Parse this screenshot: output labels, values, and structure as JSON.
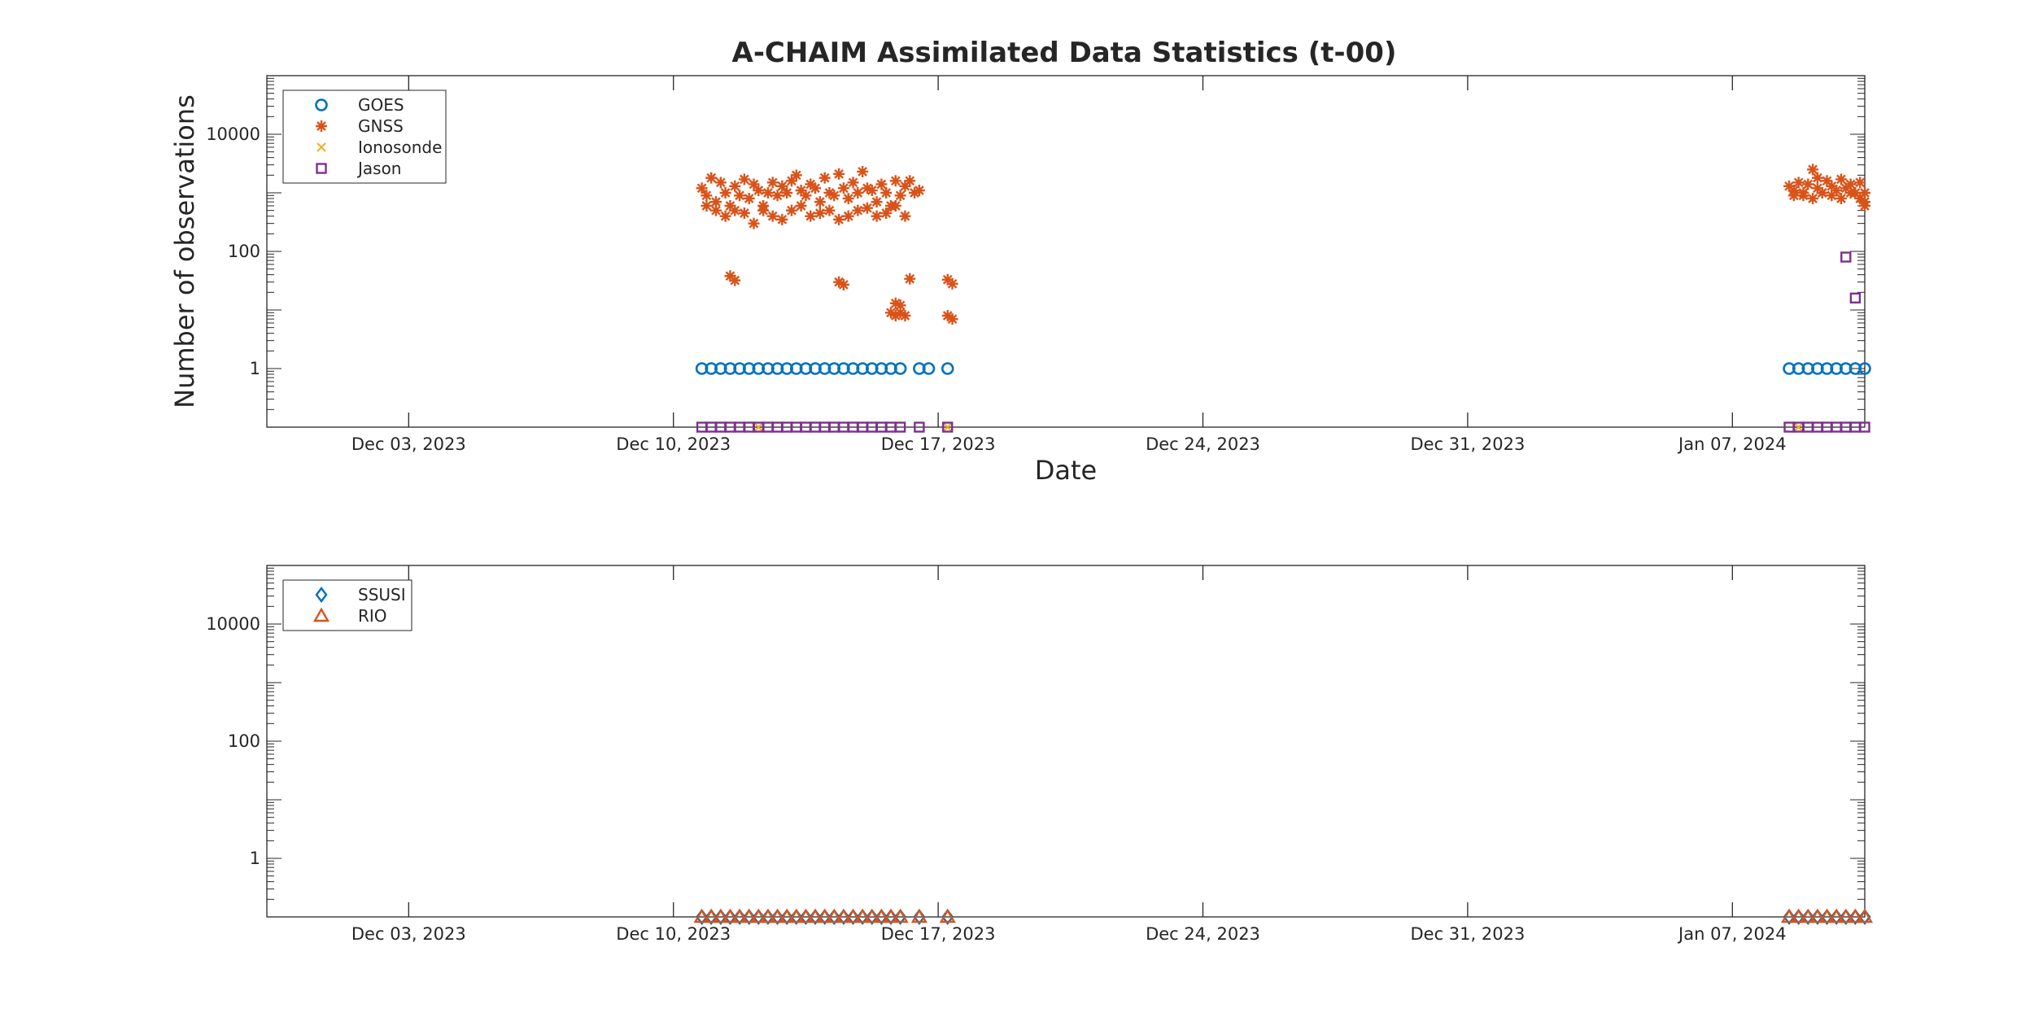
{
  "title": "A-CHAIM Assimilated Data Statistics (t-00)",
  "colors": {
    "blue": "#0072BD",
    "orange": "#D95319",
    "yellow": "#EDB120",
    "purple": "#7E2F8E",
    "axis": "#262626"
  },
  "chart_data": [
    {
      "type": "scatter",
      "yscale": "log",
      "xlabel": "Date",
      "ylabel": "Number of observations",
      "xlim": [
        "2023-11-29T06:00",
        "2024-01-10T12:00"
      ],
      "ylim": [
        0.1,
        100000
      ],
      "xticks": [
        "2023-12-03",
        "2023-12-10",
        "2023-12-17",
        "2023-12-24",
        "2023-12-31",
        "2024-01-07"
      ],
      "xticklabels": [
        "Dec 03, 2023",
        "Dec 10, 2023",
        "Dec 17, 2023",
        "Dec 24, 2023",
        "Dec 31, 2023",
        "Jan 07, 2024"
      ],
      "yticks": [
        1,
        100,
        10000
      ],
      "yticklabels": [
        "1",
        "100",
        "10000"
      ],
      "legend": "top-left",
      "series": [
        {
          "name": "GOES",
          "marker": "circle",
          "color": "#0072BD",
          "x": [
            "2023-12-10T18:00",
            "2023-12-11T00:00",
            "2023-12-11T06:00",
            "2023-12-11T12:00",
            "2023-12-11T18:00",
            "2023-12-12T00:00",
            "2023-12-12T06:00",
            "2023-12-12T12:00",
            "2023-12-12T18:00",
            "2023-12-13T00:00",
            "2023-12-13T06:00",
            "2023-12-13T12:00",
            "2023-12-13T18:00",
            "2023-12-14T00:00",
            "2023-12-14T06:00",
            "2023-12-14T12:00",
            "2023-12-14T18:00",
            "2023-12-15T00:00",
            "2023-12-15T06:00",
            "2023-12-15T12:00",
            "2023-12-15T18:00",
            "2023-12-16T00:00",
            "2023-12-16T12:00",
            "2023-12-16T18:00",
            "2023-12-17T06:00",
            "2024-01-08T12:00",
            "2024-01-08T18:00",
            "2024-01-09T00:00",
            "2024-01-09T06:00",
            "2024-01-09T12:00",
            "2024-01-09T18:00",
            "2024-01-10T00:00",
            "2024-01-10T06:00",
            "2024-01-10T12:00"
          ],
          "y": [
            1,
            1,
            1,
            1,
            1,
            1,
            1,
            1,
            1,
            1,
            1,
            1,
            1,
            1,
            1,
            1,
            1,
            1,
            1,
            1,
            1,
            1,
            1,
            1,
            1,
            1,
            1,
            1,
            1,
            1,
            1,
            1,
            1,
            1
          ]
        },
        {
          "name": "GNSS",
          "marker": "asterisk",
          "color": "#D95319",
          "x": [
            "2023-12-10T18:00",
            "2023-12-10T21:00",
            "2023-12-11T00:00",
            "2023-12-11T03:00",
            "2023-12-11T06:00",
            "2023-12-11T09:00",
            "2023-12-11T12:00",
            "2023-12-11T15:00",
            "2023-12-11T18:00",
            "2023-12-11T21:00",
            "2023-12-12T00:00",
            "2023-12-12T03:00",
            "2023-12-12T06:00",
            "2023-12-12T09:00",
            "2023-12-12T12:00",
            "2023-12-12T15:00",
            "2023-12-12T18:00",
            "2023-12-12T21:00",
            "2023-12-13T00:00",
            "2023-12-13T03:00",
            "2023-12-13T06:00",
            "2023-12-13T09:00",
            "2023-12-13T12:00",
            "2023-12-13T15:00",
            "2023-12-13T18:00",
            "2023-12-13T21:00",
            "2023-12-14T00:00",
            "2023-12-14T03:00",
            "2023-12-14T06:00",
            "2023-12-14T09:00",
            "2023-12-14T12:00",
            "2023-12-14T15:00",
            "2023-12-14T18:00",
            "2023-12-14T21:00",
            "2023-12-15T00:00",
            "2023-12-15T03:00",
            "2023-12-15T06:00",
            "2023-12-15T09:00",
            "2023-12-15T12:00",
            "2023-12-15T15:00",
            "2023-12-15T18:00",
            "2023-12-15T21:00",
            "2023-12-16T00:00",
            "2023-12-16T03:00",
            "2023-12-16T06:00",
            "2023-12-16T09:00",
            "2023-12-16T12:00",
            "2023-12-10T21:00",
            "2023-12-11T03:00",
            "2023-12-11T09:00",
            "2023-12-11T15:00",
            "2023-12-11T21:00",
            "2023-12-12T03:00",
            "2023-12-12T09:00",
            "2023-12-12T15:00",
            "2023-12-12T21:00",
            "2023-12-13T03:00",
            "2023-12-13T09:00",
            "2023-12-13T15:00",
            "2023-12-13T21:00",
            "2023-12-14T03:00",
            "2023-12-14T09:00",
            "2023-12-14T15:00",
            "2023-12-14T21:00",
            "2023-12-15T03:00",
            "2023-12-15T09:00",
            "2023-12-15T15:00",
            "2023-12-15T21:00",
            "2023-12-16T03:00",
            "2023-12-11T12:00",
            "2023-12-11T15:00",
            "2023-12-14T09:00",
            "2023-12-14T12:00",
            "2023-12-15T21:00",
            "2023-12-16T00:00",
            "2023-12-16T03:00",
            "2023-12-16T06:00",
            "2023-12-17T06:00",
            "2023-12-17T09:00",
            "2023-12-15T18:00",
            "2023-12-15T21:00",
            "2023-12-16T00:00",
            "2023-12-17T06:00",
            "2023-12-17T09:00",
            "2024-01-08T12:00",
            "2024-01-08T15:00",
            "2024-01-08T18:00",
            "2024-01-08T21:00",
            "2024-01-09T00:00",
            "2024-01-09T03:00",
            "2024-01-09T06:00",
            "2024-01-09T09:00",
            "2024-01-09T12:00",
            "2024-01-09T15:00",
            "2024-01-09T18:00",
            "2024-01-09T21:00",
            "2024-01-10T00:00",
            "2024-01-10T03:00",
            "2024-01-10T06:00",
            "2024-01-10T09:00",
            "2024-01-10T12:00",
            "2024-01-08T15:00",
            "2024-01-08T21:00",
            "2024-01-09T03:00",
            "2024-01-09T09:00",
            "2024-01-09T15:00",
            "2024-01-09T21:00",
            "2024-01-10T03:00",
            "2024-01-10T09:00",
            "2024-01-10T12:00",
            "2024-01-09T06:00",
            "2024-01-10T12:00"
          ],
          "y": [
            1200,
            900,
            1800,
            700,
            1500,
            1000,
            600,
            1300,
            900,
            1700,
            800,
            1400,
            1100,
            600,
            1000,
            1500,
            900,
            1300,
            1000,
            1600,
            2000,
            1100,
            900,
            1400,
            1200,
            700,
            1800,
            1000,
            900,
            2100,
            1200,
            800,
            1500,
            1000,
            2300,
            1200,
            1100,
            700,
            1400,
            1000,
            600,
            1600,
            900,
            1300,
            1600,
            1000,
            1100,
            600,
            500,
            400,
            500,
            450,
            300,
            500,
            400,
            350,
            500,
            600,
            400,
            450,
            500,
            350,
            400,
            500,
            550,
            400,
            450,
            600,
            400,
            38,
            32,
            30,
            27,
            13,
            9,
            8,
            34,
            33,
            28,
            9,
            8,
            12,
            8,
            7,
            1300,
            1100,
            1500,
            900,
            1400,
            2500,
            1200,
            1000,
            1600,
            1300,
            1100,
            1700,
            1200,
            1400,
            1000,
            1500,
            700,
            900,
            1000,
            800,
            1000,
            900,
            800,
            1000,
            800,
            600,
            1800,
            1000
          ]
        },
        {
          "name": "Ionosonde",
          "marker": "x",
          "color": "#EDB120",
          "x": [
            "2023-12-12T06:00",
            "2023-12-17T06:00",
            "2024-01-08T18:00"
          ],
          "y": [
            0.1,
            0.1,
            0.1
          ]
        },
        {
          "name": "Jason",
          "marker": "square",
          "color": "#7E2F8E",
          "x": [
            "2023-12-10T18:00",
            "2023-12-11T00:00",
            "2023-12-11T06:00",
            "2023-12-11T12:00",
            "2023-12-11T18:00",
            "2023-12-12T00:00",
            "2023-12-12T06:00",
            "2023-12-12T12:00",
            "2023-12-12T18:00",
            "2023-12-13T00:00",
            "2023-12-13T06:00",
            "2023-12-13T12:00",
            "2023-12-13T18:00",
            "2023-12-14T00:00",
            "2023-12-14T06:00",
            "2023-12-14T12:00",
            "2023-12-14T18:00",
            "2023-12-15T00:00",
            "2023-12-15T06:00",
            "2023-12-15T12:00",
            "2023-12-15T18:00",
            "2023-12-16T00:00",
            "2023-12-16T12:00",
            "2023-12-17T06:00",
            "2024-01-08T12:00",
            "2024-01-08T18:00",
            "2024-01-09T00:00",
            "2024-01-09T06:00",
            "2024-01-09T12:00",
            "2024-01-09T18:00",
            "2024-01-10T00:00",
            "2024-01-10T06:00",
            "2024-01-10T12:00",
            "2024-01-10T00:00",
            "2024-01-10T06:00"
          ],
          "y": [
            0.1,
            0.1,
            0.1,
            0.1,
            0.1,
            0.1,
            0.1,
            0.1,
            0.1,
            0.1,
            0.1,
            0.1,
            0.1,
            0.1,
            0.1,
            0.1,
            0.1,
            0.1,
            0.1,
            0.1,
            0.1,
            0.1,
            0.1,
            0.1,
            0.1,
            0.1,
            0.1,
            0.1,
            0.1,
            0.1,
            0.1,
            0.1,
            0.1,
            80,
            16
          ]
        }
      ]
    },
    {
      "type": "scatter",
      "yscale": "log",
      "xlabel": "",
      "ylabel": "",
      "xlim": [
        "2023-11-29T06:00",
        "2024-01-10T12:00"
      ],
      "ylim": [
        0.1,
        100000
      ],
      "xticks": [
        "2023-12-03",
        "2023-12-10",
        "2023-12-17",
        "2023-12-24",
        "2023-12-31",
        "2024-01-07"
      ],
      "xticklabels": [
        "Dec 03, 2023",
        "Dec 10, 2023",
        "Dec 17, 2023",
        "Dec 24, 2023",
        "Dec 31, 2023",
        "Jan 07, 2024"
      ],
      "yticks": [
        1,
        100,
        10000
      ],
      "yticklabels": [
        "1",
        "100",
        "10000"
      ],
      "legend": "top-left",
      "series": [
        {
          "name": "SSUSI",
          "marker": "diamond",
          "color": "#0072BD",
          "x": [
            "2023-12-10T18:00",
            "2023-12-11T00:00",
            "2023-12-11T06:00",
            "2023-12-11T12:00",
            "2023-12-11T18:00",
            "2023-12-12T00:00",
            "2023-12-12T06:00",
            "2023-12-12T12:00",
            "2023-12-12T18:00",
            "2023-12-13T00:00",
            "2023-12-13T06:00",
            "2023-12-13T12:00",
            "2023-12-13T18:00",
            "2023-12-14T00:00",
            "2023-12-14T06:00",
            "2023-12-14T12:00",
            "2023-12-14T18:00",
            "2023-12-15T00:00",
            "2023-12-15T06:00",
            "2023-12-15T12:00",
            "2023-12-15T18:00",
            "2023-12-16T00:00",
            "2023-12-16T12:00",
            "2023-12-17T06:00",
            "2024-01-08T12:00",
            "2024-01-08T18:00",
            "2024-01-09T00:00",
            "2024-01-09T06:00",
            "2024-01-09T12:00",
            "2024-01-09T18:00",
            "2024-01-10T00:00",
            "2024-01-10T06:00",
            "2024-01-10T12:00"
          ],
          "y": [
            0.1,
            0.1,
            0.1,
            0.1,
            0.1,
            0.1,
            0.1,
            0.1,
            0.1,
            0.1,
            0.1,
            0.1,
            0.1,
            0.1,
            0.1,
            0.1,
            0.1,
            0.1,
            0.1,
            0.1,
            0.1,
            0.1,
            0.1,
            0.1,
            0.1,
            0.1,
            0.1,
            0.1,
            0.1,
            0.1,
            0.1,
            0.1,
            0.1
          ]
        },
        {
          "name": "RIO",
          "marker": "triangle",
          "color": "#D95319",
          "x": [
            "2023-12-10T18:00",
            "2023-12-11T00:00",
            "2023-12-11T06:00",
            "2023-12-11T12:00",
            "2023-12-11T18:00",
            "2023-12-12T00:00",
            "2023-12-12T06:00",
            "2023-12-12T12:00",
            "2023-12-12T18:00",
            "2023-12-13T00:00",
            "2023-12-13T06:00",
            "2023-12-13T12:00",
            "2023-12-13T18:00",
            "2023-12-14T00:00",
            "2023-12-14T06:00",
            "2023-12-14T12:00",
            "2023-12-14T18:00",
            "2023-12-15T00:00",
            "2023-12-15T06:00",
            "2023-12-15T12:00",
            "2023-12-15T18:00",
            "2023-12-16T00:00",
            "2023-12-16T12:00",
            "2023-12-17T06:00",
            "2024-01-08T12:00",
            "2024-01-08T18:00",
            "2024-01-09T00:00",
            "2024-01-09T06:00",
            "2024-01-09T12:00",
            "2024-01-09T18:00",
            "2024-01-10T00:00",
            "2024-01-10T06:00",
            "2024-01-10T12:00"
          ],
          "y": [
            0.1,
            0.1,
            0.1,
            0.1,
            0.1,
            0.1,
            0.1,
            0.1,
            0.1,
            0.1,
            0.1,
            0.1,
            0.1,
            0.1,
            0.1,
            0.1,
            0.1,
            0.1,
            0.1,
            0.1,
            0.1,
            0.1,
            0.1,
            0.1,
            0.1,
            0.1,
            0.1,
            0.1,
            0.1,
            0.1,
            0.1,
            0.1,
            0.1
          ]
        }
      ]
    }
  ]
}
